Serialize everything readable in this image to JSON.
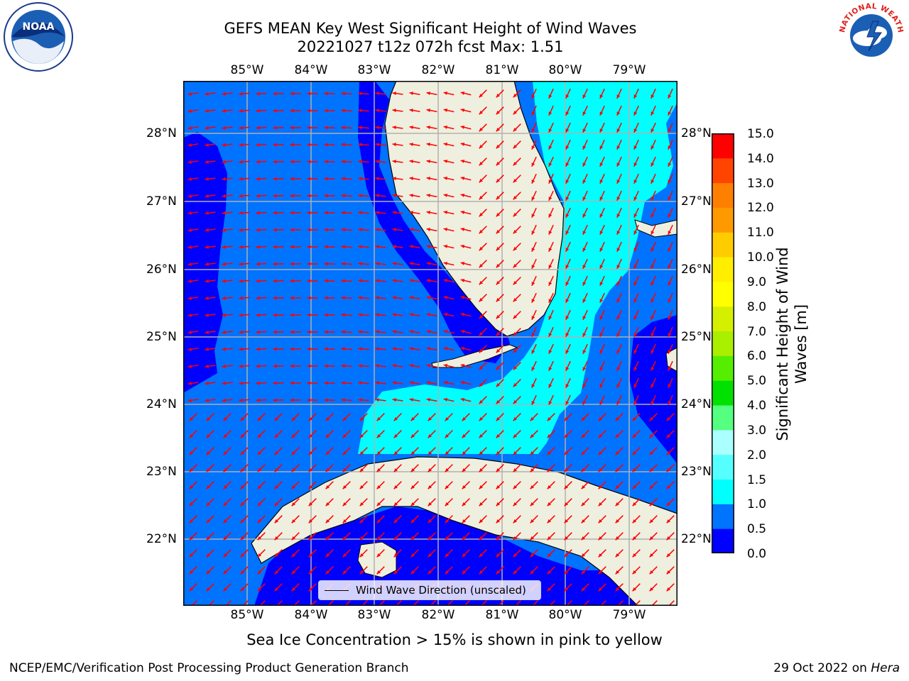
{
  "header": {
    "title_line1": "GEFS MEAN Key West Significant Height of Wind Waves",
    "title_line2": "20221027 t12z 072h fcst   Max: 1.51"
  },
  "axes": {
    "lon_ticks": [
      "85°W",
      "84°W",
      "83°W",
      "82°W",
      "81°W",
      "80°W",
      "79°W"
    ],
    "lat_ticks": [
      "28°N",
      "27°N",
      "26°N",
      "25°N",
      "24°N",
      "23°N",
      "22°N"
    ],
    "lon_range": [
      -86.0,
      -78.3
    ],
    "lat_range": [
      21.1,
      28.8
    ]
  },
  "colorbar": {
    "title": "Significant Height of Wind Waves [m]",
    "tick_labels": [
      "15.0",
      "14.0",
      "13.0",
      "12.0",
      "11.0",
      "10.0",
      "9.0",
      "8.0",
      "7.0",
      "6.0",
      "5.0",
      "4.0",
      "3.0",
      "2.0",
      "1.5",
      "1.0",
      "0.5",
      "0.0"
    ],
    "levels": [
      0.0,
      0.5,
      1.0,
      1.5,
      2.0,
      3.0,
      4.0,
      5.0,
      6.0,
      7.0,
      8.0,
      9.0,
      10.0,
      11.0,
      12.0,
      13.0,
      14.0,
      15.0
    ],
    "colors": [
      "#0000ff",
      "#0073ff",
      "#00ffff",
      "#55ffff",
      "#aaffff",
      "#55ff7f",
      "#00e100",
      "#55ee00",
      "#aaee00",
      "#d4f000",
      "#ffff00",
      "#ffee00",
      "#ffcc00",
      "#ff9900",
      "#ff7f00",
      "#ff4400",
      "#ff0000"
    ]
  },
  "legend": {
    "label": "Wind Wave Direction (unscaled)"
  },
  "map": {
    "land_color": "#efefdf",
    "arrow_color": "#ff0000",
    "grid_color": "#b0b0b0"
  },
  "footer": {
    "note": "Sea Ice Concentration > 15% is shown in pink to yellow",
    "left": "NCEP/EMC/Verification Post Processing Product Generation Branch",
    "date": "29 Oct 2022 on ",
    "machine": "Hera"
  },
  "logos": {
    "left": "NOAA",
    "right": "NATIONAL WEATHER SERVICE"
  }
}
